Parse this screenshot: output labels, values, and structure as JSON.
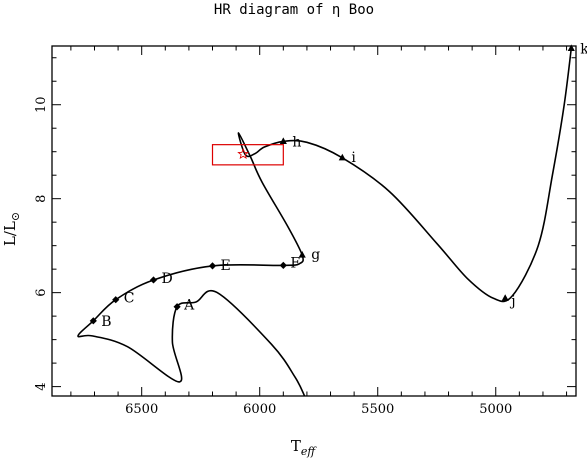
{
  "chart_data": {
    "type": "line",
    "title": "HR diagram of η Boo",
    "xlabel": "T",
    "xlabel_sub": "eff",
    "ylabel": "L/L",
    "ylabel_sub": "⊙",
    "xlim": [
      6880,
      4660
    ],
    "ylim": [
      3.8,
      11.25
    ],
    "xticks": [
      6500,
      6000,
      5500,
      5000
    ],
    "xtick_labels": [
      "6500",
      "6000",
      "5500",
      "5000"
    ],
    "yticks": [
      4,
      6,
      8,
      10
    ],
    "ytick_labels": [
      "4",
      "6",
      "8",
      "10"
    ],
    "grid": false,
    "colors": {
      "track": "#000000",
      "box": "#dd0000",
      "star": "#dd0000"
    },
    "track": [
      [
        5810,
        3.8
      ],
      [
        5850,
        4.2
      ],
      [
        5950,
        4.9
      ],
      [
        6180,
        6.0
      ],
      [
        6270,
        5.8
      ],
      [
        6350,
        5.7
      ],
      [
        6370,
        4.95
      ],
      [
        6340,
        4.1
      ],
      [
        6560,
        4.85
      ],
      [
        6710,
        5.08
      ],
      [
        6770,
        5.08
      ],
      [
        6705,
        5.4
      ],
      [
        6610,
        5.85
      ],
      [
        6450,
        6.27
      ],
      [
        6200,
        6.57
      ],
      [
        5900,
        6.58
      ],
      [
        5830,
        6.62
      ],
      [
        5820,
        6.8
      ],
      [
        5880,
        7.4
      ],
      [
        5990,
        8.35
      ],
      [
        6040,
        8.9
      ],
      [
        6090,
        9.4
      ],
      [
        6060,
        8.93
      ],
      [
        6020,
        8.96
      ],
      [
        5980,
        9.1
      ],
      [
        5900,
        9.22
      ],
      [
        5800,
        9.2
      ],
      [
        5650,
        8.87
      ],
      [
        5450,
        8.15
      ],
      [
        5250,
        7.05
      ],
      [
        5120,
        6.3
      ],
      [
        5010,
        5.88
      ],
      [
        4930,
        5.93
      ],
      [
        4820,
        7.0
      ],
      [
        4760,
        8.5
      ],
      [
        4710,
        10.0
      ],
      [
        4680,
        11.2
      ]
    ],
    "points": [
      {
        "label": "A",
        "x": 6350,
        "y": 5.7,
        "marker": "diamond"
      },
      {
        "label": "B",
        "x": 6705,
        "y": 5.4,
        "marker": "diamond"
      },
      {
        "label": "C",
        "x": 6610,
        "y": 5.85,
        "marker": "diamond"
      },
      {
        "label": "D",
        "x": 6450,
        "y": 6.27,
        "marker": "diamond"
      },
      {
        "label": "E",
        "x": 6200,
        "y": 6.57,
        "marker": "diamond"
      },
      {
        "label": "F",
        "x": 5900,
        "y": 6.58,
        "marker": "diamond"
      },
      {
        "label": "g",
        "x": 5820,
        "y": 6.8,
        "marker": "triangle"
      },
      {
        "label": "h",
        "x": 5900,
        "y": 9.22,
        "marker": "triangle"
      },
      {
        "label": "i",
        "x": 5650,
        "y": 8.87,
        "marker": "triangle"
      },
      {
        "label": "j",
        "x": 4960,
        "y": 5.88,
        "marker": "triangle"
      },
      {
        "label": "k",
        "x": 4680,
        "y": 11.2,
        "marker": "triangle"
      }
    ],
    "observed_box": {
      "x": [
        6200,
        5900
      ],
      "y": [
        8.72,
        9.15
      ]
    },
    "observed_star": {
      "x": 6070,
      "y": 8.95
    }
  }
}
